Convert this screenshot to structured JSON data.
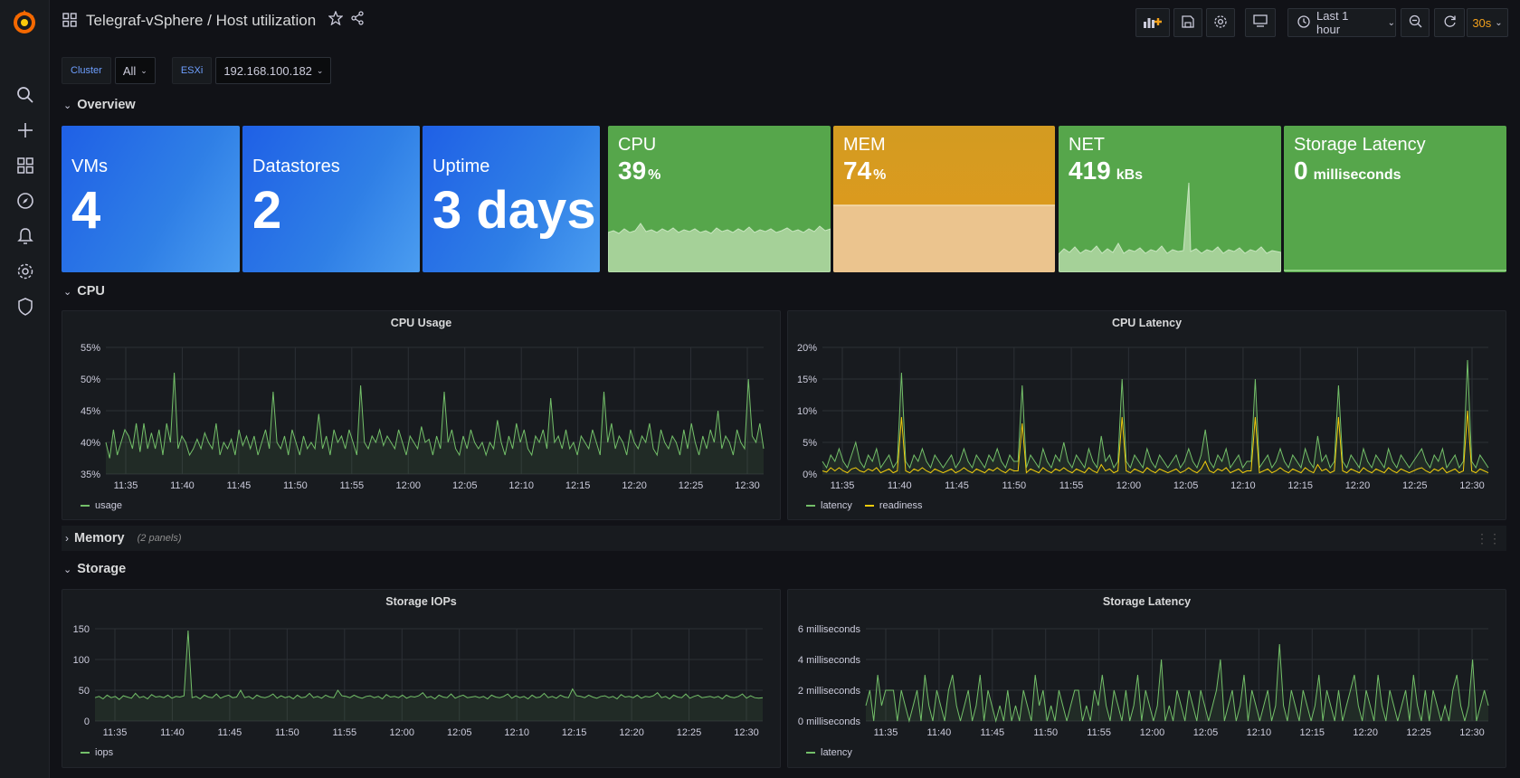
{
  "header": {
    "breadcrumb": "Telegraf-vSphere / Host utilization",
    "time_range": "Last 1 hour",
    "refresh": "30s"
  },
  "variables": [
    {
      "label": "Cluster",
      "value": "All"
    },
    {
      "label": "ESXi",
      "value": "192.168.100.182"
    }
  ],
  "rows": {
    "overview": "Overview",
    "cpu": "CPU",
    "memory": "Memory",
    "memory_meta": "(2 panels)",
    "storage": "Storage"
  },
  "stats": [
    {
      "title": "VMs",
      "value": "4",
      "unit": ""
    },
    {
      "title": "Datastores",
      "value": "2",
      "unit": ""
    },
    {
      "title": "Uptime",
      "value": "3 days",
      "unit": ""
    },
    {
      "title": "CPU",
      "value": "39",
      "unit": "%"
    },
    {
      "title": "MEM",
      "value": "74",
      "unit": "%"
    },
    {
      "title": "NET",
      "value": "419",
      "unit": "kBs"
    },
    {
      "title": "Storage Latency",
      "value": "0",
      "unit": "milliseconds"
    }
  ],
  "colors": {
    "series_green": "#73bf69",
    "series_yellow": "#f2cc0c",
    "stat_green": "#56a64b",
    "stat_orange": "#e0a21d",
    "stat_blue": "#1f60e6",
    "brand_orange": "#f46800"
  },
  "icons": [
    "grafana-logo-icon",
    "search-icon",
    "plus-icon",
    "dashboards-icon",
    "explore-icon",
    "bell-icon",
    "gear-icon",
    "shield-icon",
    "star-icon",
    "share-icon",
    "add-panel-icon",
    "save-icon",
    "settings-icon",
    "tv-icon",
    "clock-icon",
    "zoom-out-icon",
    "refresh-icon"
  ],
  "chart_data": [
    {
      "id": "cpu_usage",
      "type": "line",
      "title": "CPU Usage",
      "x_ticks": [
        "11:35",
        "11:40",
        "11:45",
        "11:50",
        "11:55",
        "12:00",
        "12:05",
        "12:10",
        "12:15",
        "12:20",
        "12:25",
        "12:30"
      ],
      "y_ticks": [
        "35%",
        "40%",
        "45%",
        "50%",
        "55%"
      ],
      "ylim": [
        35,
        55
      ],
      "series": [
        {
          "name": "usage",
          "values": [
            40,
            37.5,
            42,
            38,
            40,
            42,
            41,
            39,
            43,
            38.5,
            43,
            39,
            41.5,
            39,
            42,
            38,
            43,
            40,
            51,
            39,
            41,
            40,
            38,
            39,
            40.5,
            39,
            41.5,
            40,
            39,
            43,
            38,
            40,
            39,
            40.5,
            38,
            42,
            39.5,
            41,
            39,
            41,
            38,
            40,
            42,
            39,
            48,
            40,
            39,
            41,
            38,
            42,
            40,
            38,
            41,
            39,
            40,
            39,
            44.5,
            39,
            41,
            38,
            42,
            40,
            41,
            39,
            42,
            40,
            38,
            49,
            40,
            39,
            41,
            40,
            42,
            39.5,
            41,
            40,
            39,
            42,
            40,
            38,
            41,
            40,
            39,
            42.5,
            40,
            40.5,
            38,
            41,
            39,
            48,
            40,
            42,
            39,
            38,
            41,
            39,
            42,
            40,
            39,
            40,
            38,
            40,
            39,
            43.5,
            40,
            38,
            41,
            39,
            43,
            40,
            42,
            39,
            38,
            41,
            40,
            42,
            39,
            47,
            40,
            41,
            39,
            42,
            39,
            40,
            38,
            41,
            40,
            39,
            42,
            40,
            38,
            48,
            40,
            43,
            39,
            41,
            40,
            38,
            42,
            40,
            39,
            41,
            40,
            43,
            39,
            38,
            42,
            40,
            39,
            41,
            40,
            38,
            42,
            39,
            43,
            40,
            38,
            41,
            39,
            42,
            40,
            45,
            39,
            41,
            40,
            38,
            42,
            40,
            39,
            50,
            41,
            40,
            43,
            39
          ]
        }
      ]
    },
    {
      "id": "cpu_latency",
      "type": "line",
      "title": "CPU Latency",
      "x_ticks": [
        "11:35",
        "11:40",
        "11:45",
        "11:50",
        "11:55",
        "12:00",
        "12:05",
        "12:10",
        "12:15",
        "12:20",
        "12:25",
        "12:30"
      ],
      "y_ticks": [
        "0%",
        "5%",
        "10%",
        "15%",
        "20%"
      ],
      "ylim": [
        0,
        20
      ],
      "series": [
        {
          "name": "latency",
          "values": [
            2,
            1,
            3,
            2,
            4,
            2,
            1,
            3,
            5,
            2,
            1,
            3,
            2,
            4,
            1,
            2,
            3,
            1,
            2,
            16,
            2,
            1,
            3,
            2,
            4,
            2,
            1,
            3,
            2,
            1,
            2,
            3,
            1,
            2,
            4,
            2,
            1,
            3,
            2,
            1,
            3,
            2,
            4,
            2,
            1,
            3,
            2,
            2,
            14,
            1,
            3,
            2,
            1,
            4,
            2,
            1,
            3,
            2,
            5,
            2,
            1,
            3,
            2,
            1,
            4,
            2,
            1,
            6,
            2,
            3,
            1,
            2,
            15,
            2,
            1,
            3,
            2,
            1,
            4,
            2,
            1,
            3,
            2,
            1,
            2,
            3,
            1,
            2,
            4,
            2,
            1,
            3,
            7,
            2,
            1,
            3,
            2,
            4,
            1,
            2,
            3,
            1,
            2,
            2,
            15,
            1,
            2,
            3,
            1,
            2,
            4,
            2,
            1,
            3,
            2,
            1,
            4,
            2,
            1,
            6,
            2,
            3,
            1,
            2,
            14,
            2,
            1,
            3,
            2,
            1,
            4,
            2,
            1,
            3,
            2,
            1,
            4,
            2,
            1,
            3,
            2,
            1,
            2,
            3,
            4,
            2,
            1,
            3,
            2,
            4,
            1,
            2,
            3,
            1,
            2,
            18,
            2,
            1,
            3,
            2,
            1
          ]
        },
        {
          "name": "readiness",
          "values": [
            0.5,
            0.3,
            1,
            0.5,
            1,
            0.5,
            0.2,
            0.8,
            1,
            0.5,
            0.3,
            0.8,
            0.5,
            1,
            0.2,
            0.5,
            0.8,
            0.2,
            0.5,
            9,
            0.5,
            0.2,
            0.8,
            0.5,
            1,
            0.5,
            0.2,
            0.8,
            0.5,
            0.2,
            0.5,
            0.8,
            0.2,
            0.5,
            1,
            0.5,
            0.2,
            0.8,
            0.5,
            0.2,
            0.8,
            0.5,
            1,
            0.5,
            0.2,
            0.8,
            0.5,
            0.5,
            8,
            0.2,
            0.8,
            0.5,
            0.2,
            1,
            0.5,
            0.2,
            0.8,
            0.5,
            1,
            0.5,
            0.2,
            0.8,
            0.5,
            0.2,
            1,
            0.5,
            0.2,
            1.5,
            0.5,
            0.8,
            0.2,
            0.5,
            9,
            0.5,
            0.2,
            0.8,
            0.5,
            0.2,
            1,
            0.5,
            0.2,
            0.8,
            0.5,
            0.2,
            0.5,
            0.8,
            0.2,
            0.5,
            1,
            0.5,
            0.2,
            0.8,
            2,
            0.5,
            0.2,
            0.8,
            0.5,
            1,
            0.2,
            0.5,
            0.8,
            0.2,
            0.5,
            0.5,
            9,
            0.2,
            0.5,
            0.8,
            0.2,
            0.5,
            1,
            0.5,
            0.2,
            0.8,
            0.5,
            0.2,
            1,
            0.5,
            0.2,
            1.5,
            0.5,
            0.8,
            0.2,
            0.5,
            9,
            0.5,
            0.2,
            0.8,
            0.5,
            0.2,
            1,
            0.5,
            0.2,
            0.8,
            0.5,
            0.2,
            1,
            0.5,
            0.2,
            0.8,
            0.5,
            0.2,
            0.5,
            0.8,
            1,
            0.5,
            0.2,
            0.8,
            0.5,
            1,
            0.2,
            0.5,
            0.8,
            0.2,
            0.5,
            10,
            0.5,
            0.2,
            0.8,
            0.5,
            0.2
          ]
        }
      ]
    },
    {
      "id": "storage_iops",
      "type": "line",
      "title": "Storage IOPs",
      "x_ticks": [
        "11:35",
        "11:40",
        "11:45",
        "11:50",
        "11:55",
        "12:00",
        "12:05",
        "12:10",
        "12:15",
        "12:20",
        "12:25",
        "12:30"
      ],
      "y_ticks": [
        "0",
        "50",
        "100",
        "150"
      ],
      "ylim": [
        0,
        150
      ],
      "series": [
        {
          "name": "iops",
          "values": [
            38,
            40,
            36,
            42,
            38,
            40,
            35,
            41,
            39,
            37,
            45,
            38,
            40,
            36,
            43,
            39,
            40,
            38,
            42,
            37,
            40,
            39,
            41,
            147,
            38,
            40,
            36,
            42,
            39,
            38,
            44,
            37,
            40,
            42,
            38,
            39,
            50,
            38,
            40,
            36,
            42,
            39,
            38,
            40,
            44,
            37,
            41,
            38,
            40,
            36,
            42,
            38,
            39,
            45,
            38,
            40,
            37,
            42,
            39,
            38,
            50,
            41,
            40,
            38,
            42,
            39,
            37,
            40,
            41,
            38,
            40,
            36,
            43,
            39,
            40,
            38,
            42,
            37,
            40,
            39,
            41,
            46,
            38,
            40,
            36,
            42,
            39,
            38,
            44,
            37,
            40,
            42,
            38,
            39,
            40,
            38,
            40,
            36,
            42,
            39,
            38,
            40,
            44,
            37,
            41,
            38,
            40,
            36,
            42,
            38,
            39,
            45,
            38,
            40,
            37,
            42,
            39,
            38,
            52,
            41,
            40,
            38,
            42,
            39,
            37,
            40,
            41,
            38,
            40,
            36,
            43,
            39,
            40,
            38,
            42,
            37,
            40,
            39,
            41,
            46,
            38,
            40,
            36,
            42,
            39,
            38,
            44,
            37,
            40,
            42,
            38,
            39,
            40,
            38,
            40,
            36,
            42,
            39,
            38,
            40,
            44,
            37,
            41,
            38,
            37,
            38
          ]
        }
      ]
    },
    {
      "id": "storage_latency",
      "type": "line",
      "title": "Storage Latency",
      "x_ticks": [
        "11:35",
        "11:40",
        "11:45",
        "11:50",
        "11:55",
        "12:00",
        "12:05",
        "12:10",
        "12:15",
        "12:20",
        "12:25",
        "12:30"
      ],
      "y_ticks": [
        "0 milliseconds",
        "2 milliseconds",
        "4 milliseconds",
        "6 milliseconds"
      ],
      "ylim": [
        0,
        6
      ],
      "series": [
        {
          "name": "latency",
          "values": [
            1,
            2,
            0,
            3,
            1,
            2,
            2,
            2,
            0,
            2,
            1,
            0,
            1,
            2,
            0,
            3,
            1,
            0,
            2,
            1,
            0,
            2,
            3,
            1,
            0,
            1,
            2,
            0,
            1,
            3,
            0,
            2,
            1,
            0,
            1,
            0,
            2,
            0,
            1,
            0,
            2,
            1,
            0,
            3,
            1,
            2,
            0,
            1,
            0,
            2,
            1,
            0,
            1,
            2,
            2,
            0,
            1,
            0,
            2,
            1,
            3,
            1,
            0,
            2,
            1,
            0,
            2,
            0,
            1,
            3,
            0,
            2,
            1,
            0,
            1,
            4,
            0,
            1,
            0,
            2,
            1,
            0,
            2,
            1,
            0,
            2,
            1,
            0,
            1,
            2,
            4,
            0,
            1,
            2,
            0,
            1,
            3,
            0,
            2,
            1,
            0,
            1,
            2,
            0,
            1,
            5,
            1,
            0,
            2,
            1,
            0,
            2,
            1,
            0,
            1,
            3,
            0,
            2,
            1,
            0,
            2,
            0,
            1,
            2,
            3,
            1,
            0,
            2,
            1,
            0,
            3,
            1,
            0,
            2,
            1,
            0,
            1,
            2,
            0,
            3,
            1,
            0,
            2,
            0,
            2,
            1,
            0,
            1,
            0,
            2,
            3,
            1,
            0,
            1,
            4,
            0,
            1,
            2,
            1
          ]
        }
      ]
    }
  ]
}
